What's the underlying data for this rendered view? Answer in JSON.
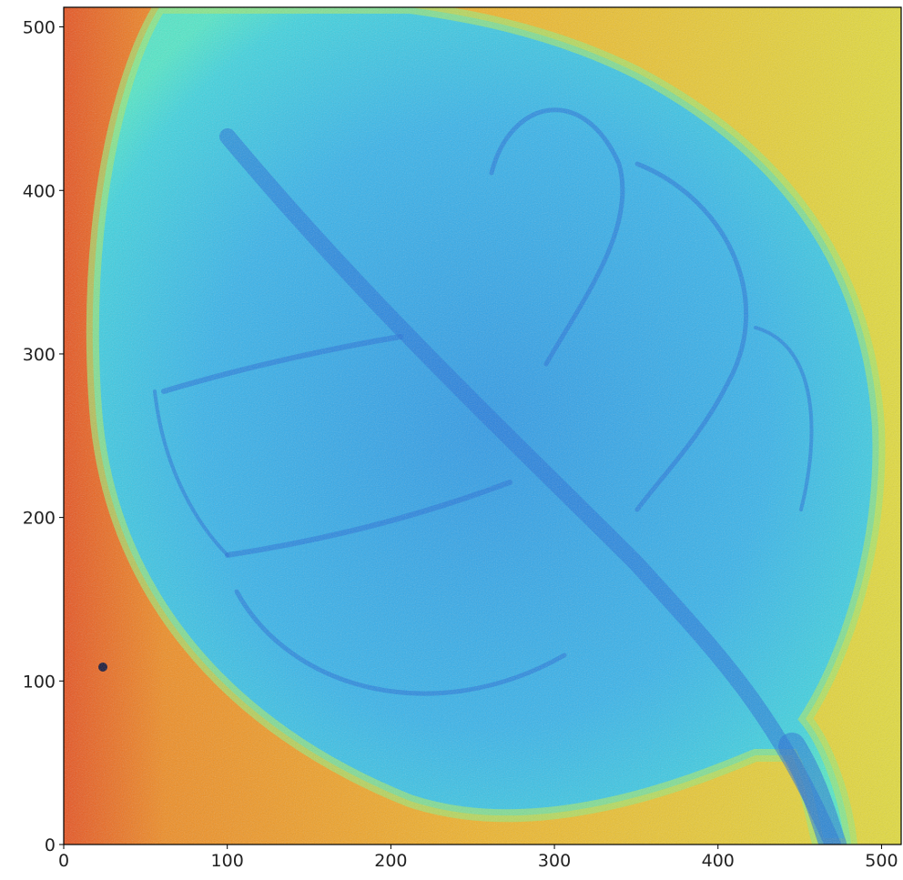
{
  "chart_data": {
    "type": "image",
    "xlim": [
      0,
      512
    ],
    "ylim": [
      0,
      512
    ],
    "xticks": [
      0,
      100,
      200,
      300,
      400,
      500
    ],
    "yticks": [
      0,
      100,
      200,
      300,
      400,
      500
    ]
  }
}
